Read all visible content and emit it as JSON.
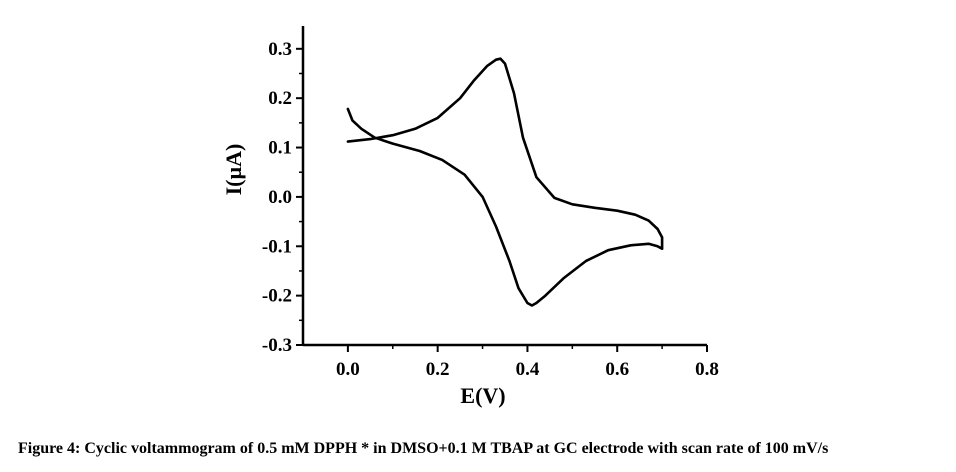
{
  "caption": "Figure 4: Cyclic voltammogram of 0.5 mM DPPH * in DMSO+0.1 M TBAP at GC electrode with scan rate of 100 mV/s",
  "chart_data": {
    "type": "line",
    "title": "",
    "xlabel": "E(V)",
    "ylabel": "I(µA)",
    "xlim": [
      -0.1,
      0.8
    ],
    "ylim": [
      -0.3,
      0.33
    ],
    "x_ticks": [
      0.0,
      0.2,
      0.4,
      0.6,
      0.8
    ],
    "x_tick_labels": [
      "0.0",
      "0.2",
      "0.4",
      "0.6",
      "0.8"
    ],
    "y_ticks": [
      -0.3,
      -0.2,
      -0.1,
      0.0,
      0.1,
      0.2,
      0.3
    ],
    "y_tick_labels": [
      "-0.3",
      "-0.2",
      "-0.1",
      "0.0",
      "0.1",
      "0.2",
      "0.3"
    ],
    "grid": false,
    "line_color": "#000000",
    "series": [
      {
        "x": [
          0.0,
          0.05,
          0.1,
          0.15,
          0.2,
          0.25,
          0.28,
          0.31,
          0.33,
          0.34,
          0.35,
          0.37,
          0.39,
          0.42,
          0.46,
          0.5,
          0.55,
          0.6,
          0.64,
          0.67,
          0.69,
          0.7,
          0.7,
          0.69,
          0.67,
          0.63,
          0.58,
          0.53,
          0.48,
          0.44,
          0.42,
          0.41,
          0.4,
          0.38,
          0.36,
          0.33,
          0.3,
          0.26,
          0.21,
          0.16,
          0.1,
          0.06,
          0.03,
          0.01,
          0.0
        ],
        "y": [
          0.112,
          0.117,
          0.125,
          0.138,
          0.16,
          0.2,
          0.235,
          0.265,
          0.278,
          0.28,
          0.27,
          0.21,
          0.12,
          0.04,
          -0.002,
          -0.015,
          -0.022,
          -0.028,
          -0.036,
          -0.048,
          -0.065,
          -0.082,
          -0.105,
          -0.1,
          -0.095,
          -0.098,
          -0.108,
          -0.13,
          -0.165,
          -0.2,
          -0.215,
          -0.22,
          -0.215,
          -0.185,
          -0.13,
          -0.06,
          0.0,
          0.045,
          0.075,
          0.093,
          0.108,
          0.12,
          0.138,
          0.155,
          0.178
        ]
      }
    ]
  }
}
